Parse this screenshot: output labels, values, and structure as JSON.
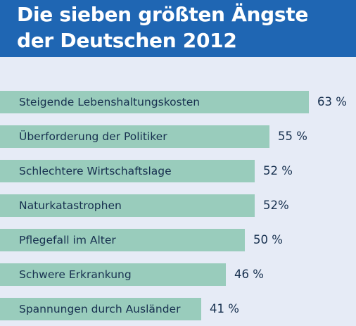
{
  "title_line1": "Die sieben größten Ängste",
  "title_line2": "der Deutschen 2012",
  "colors": {
    "header": "#1f66b3",
    "background": "#e6ebf6",
    "bar": "#99ccbc",
    "text": "#17304f"
  },
  "chart_data": {
    "type": "bar",
    "orientation": "horizontal",
    "title": "Die sieben größten Ängste der Deutschen 2012",
    "categories": [
      "Steigende Lebenshaltungskosten",
      "Überforderung der Politiker",
      "Schlechtere Wirtschaftslage",
      "Naturkatastrophen",
      "Pflegefall im Alter",
      "Schwere Erkrankung",
      "Spannungen durch Ausländer"
    ],
    "values": [
      63,
      55,
      52,
      52,
      50,
      46,
      41
    ],
    "value_labels": [
      "63 %",
      "55 %",
      "52 %",
      "52%",
      "50 %",
      "46 %",
      "41 %"
    ],
    "unit": "%",
    "grid": false,
    "legend": "none"
  }
}
